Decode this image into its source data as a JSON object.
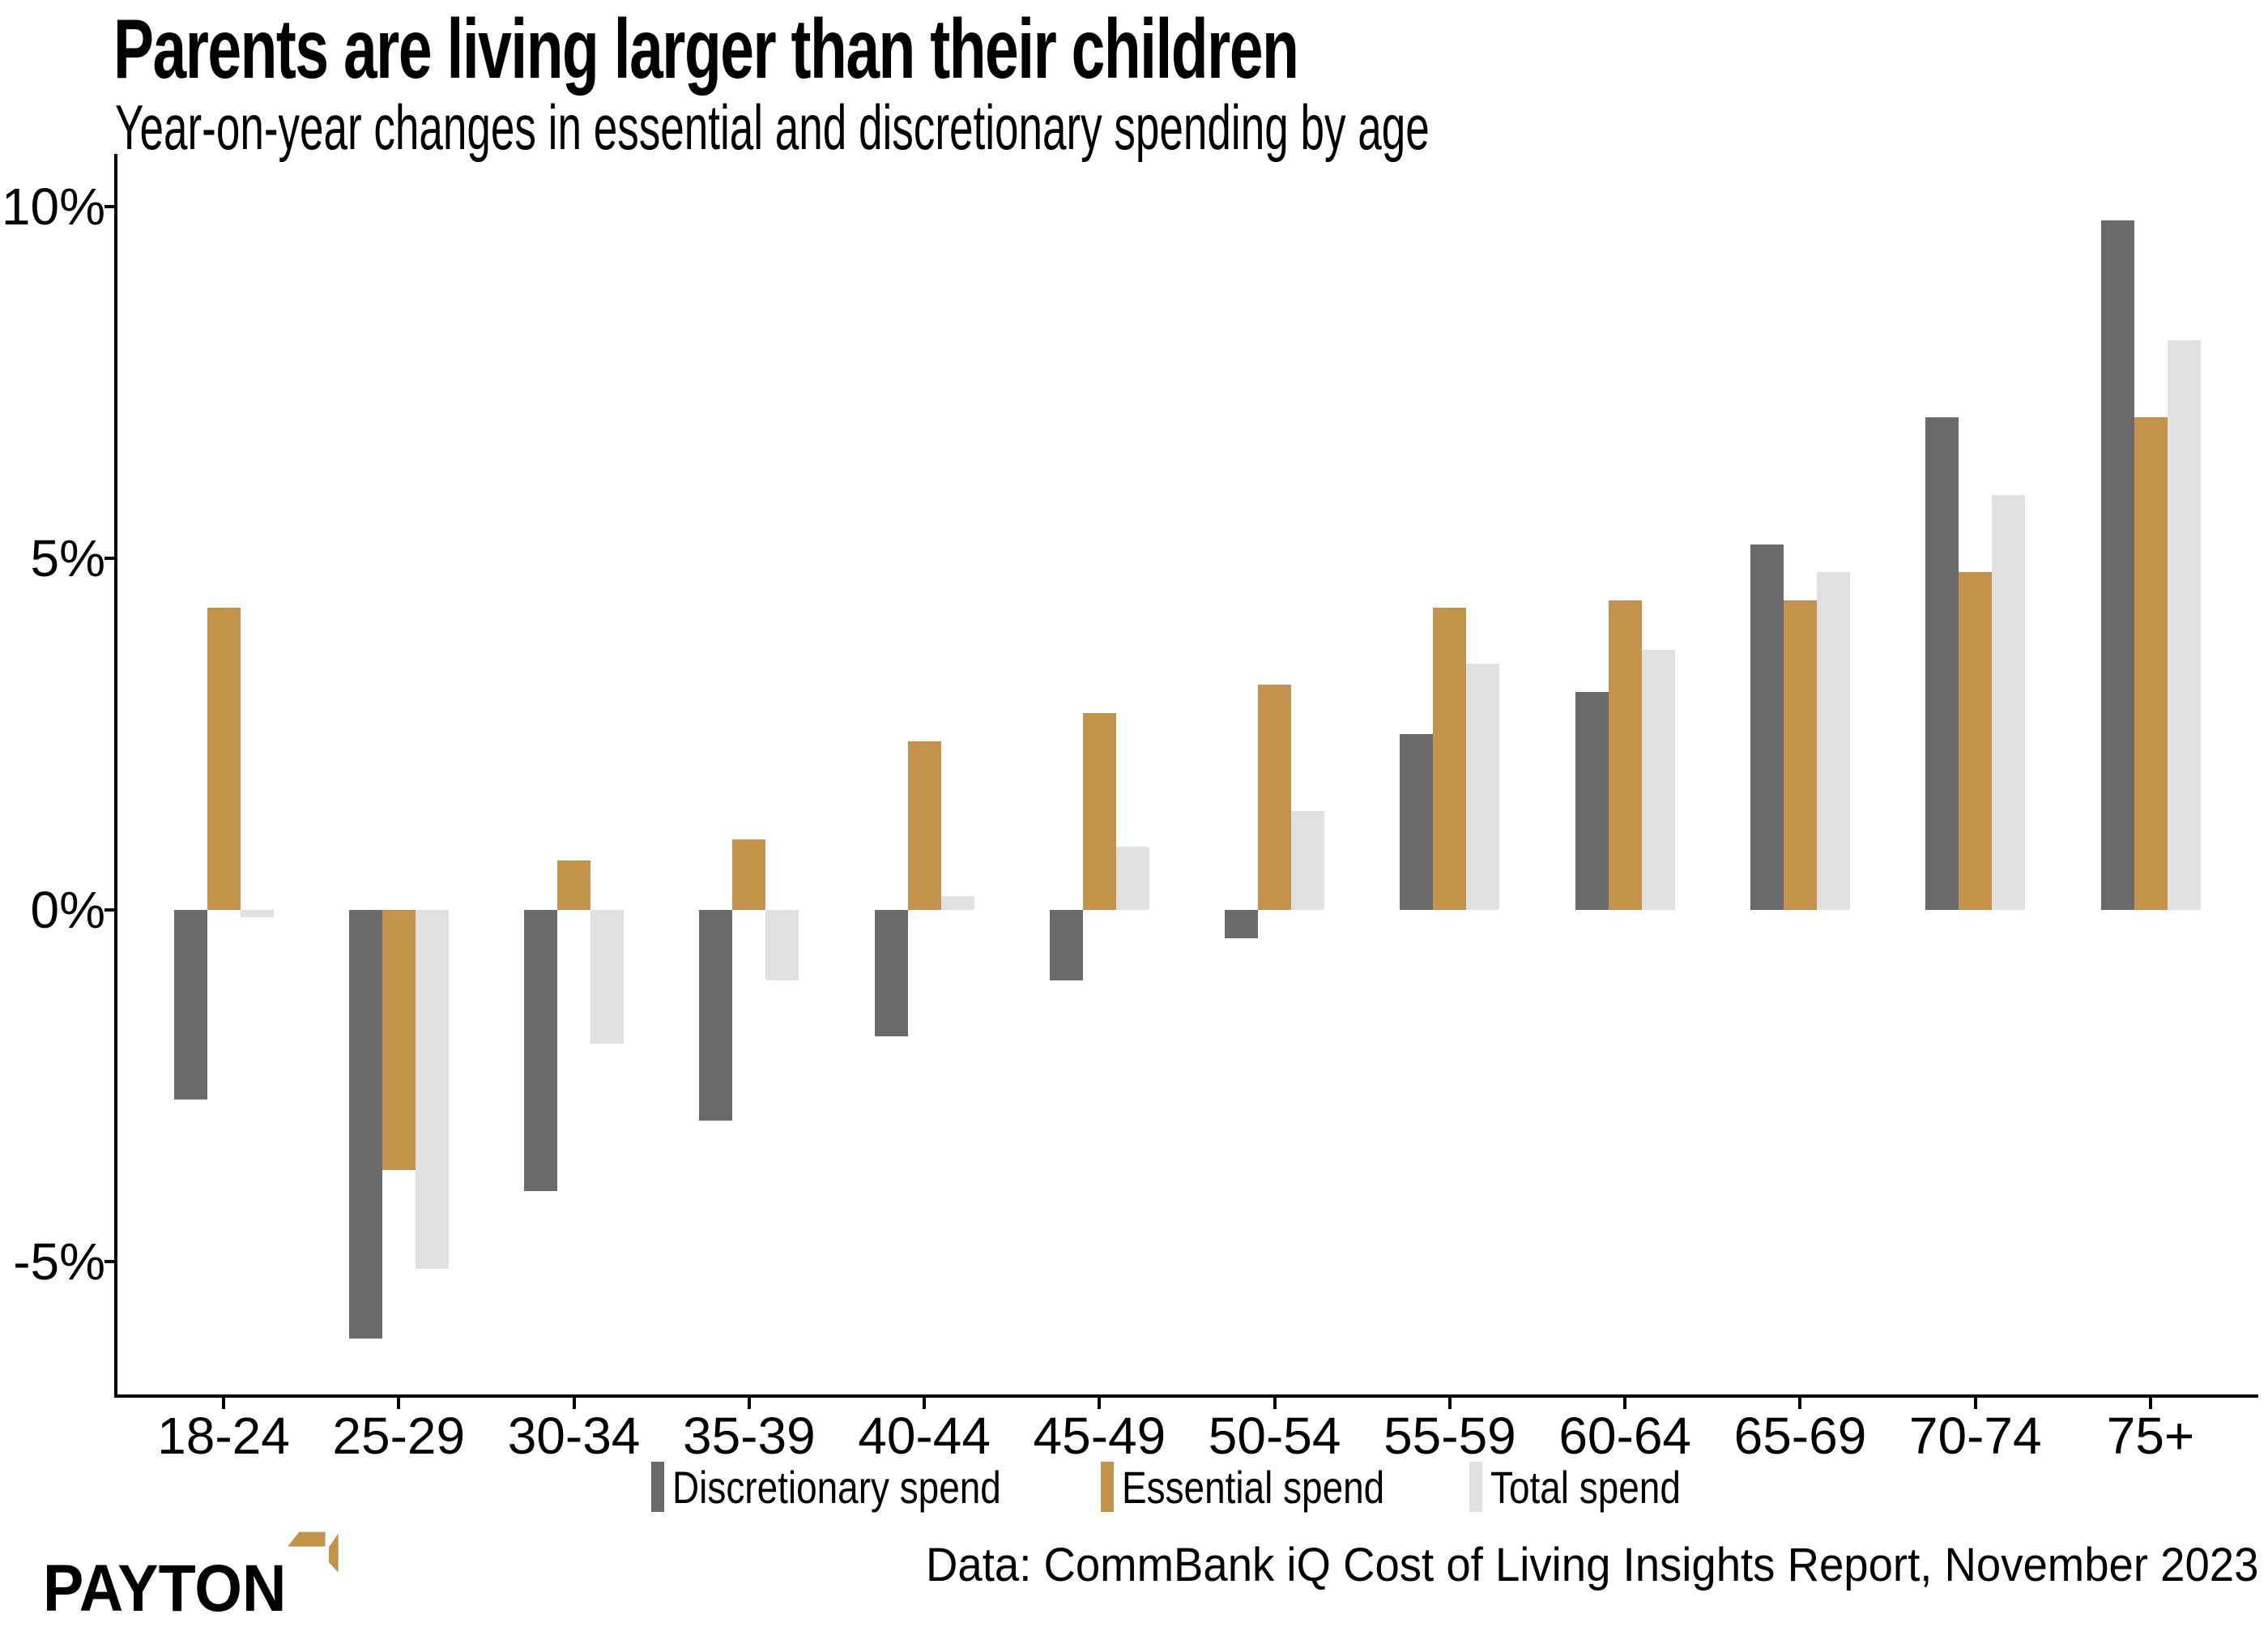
{
  "title": "Parents are living larger than their children",
  "subtitle": "Year-on-year changes in essential and discretionary spending by age",
  "source_note": "Data: CommBank iQ Cost of Living Insights Report, November 2023",
  "logo": {
    "text": "PAYTON",
    "arrow_color": "#c3934b"
  },
  "colors": {
    "discretionary": "#6a6a6a",
    "essential": "#c3934b",
    "total": "#e1e1e1",
    "axis": "#000000"
  },
  "chart_data": {
    "type": "bar",
    "title": "Parents are living larger than their children",
    "subtitle": "Year-on-year changes in essential and discretionary spending by age",
    "categories": [
      "18-24",
      "25-29",
      "30-34",
      "35-39",
      "40-44",
      "45-49",
      "50-54",
      "55-59",
      "60-64",
      "65-69",
      "70-74",
      "75+"
    ],
    "series": [
      {
        "name": "Discretionary spend",
        "color": "#6a6a6a",
        "values": [
          -2.7,
          -6.1,
          -4.0,
          -3.0,
          -1.8,
          -1.0,
          -0.4,
          2.5,
          3.1,
          5.2,
          7.0,
          9.8
        ]
      },
      {
        "name": "Essential spend",
        "color": "#c3934b",
        "values": [
          4.3,
          -3.7,
          0.7,
          1.0,
          2.4,
          2.8,
          3.2,
          4.3,
          4.4,
          4.4,
          4.8,
          7.0
        ]
      },
      {
        "name": "Total spend",
        "color": "#e1e1e1",
        "values": [
          -0.1,
          -5.1,
          -1.9,
          -1.0,
          0.2,
          0.9,
          1.4,
          3.5,
          3.7,
          4.8,
          5.9,
          8.1
        ]
      }
    ],
    "xlabel": "",
    "ylabel": "",
    "y_ticks": [
      "10%",
      "5%",
      "0%",
      "-5%"
    ],
    "y_tick_values": [
      10,
      5,
      0,
      -5
    ],
    "ylim": [
      -6.9,
      10.6
    ],
    "unit": "%",
    "grid": false,
    "legend_position": "bottom"
  }
}
